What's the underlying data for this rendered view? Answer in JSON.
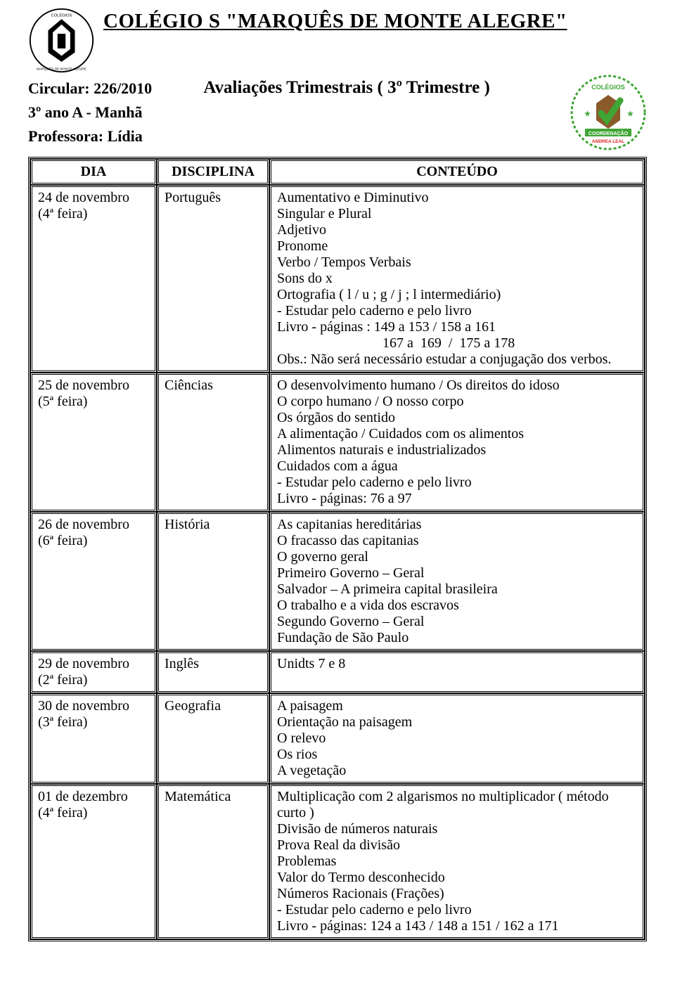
{
  "header": {
    "school_title": "COLÉGIO S \"MARQUÊS DE MONTE ALEGRE\"",
    "circular": "Circular: 226/2010",
    "grade": "3º ano A - Manhã",
    "teacher": "Professora: Lídia",
    "eval_title": "Avaliações Trimestrais  ( 3º Trimestre )"
  },
  "table": {
    "headers": {
      "dia": "DIA",
      "disciplina": "DISCIPLINA",
      "conteudo": "CONTEÚDO"
    },
    "rows": [
      {
        "dia_line1": "24 de novembro",
        "dia_line2": "(4ª feira)",
        "disciplina": "Português",
        "conteudo": [
          "Aumentativo e Diminutivo",
          "Singular e Plural",
          "Adjetivo",
          "Pronome",
          "Verbo   /  Tempos Verbais",
          "Sons do x",
          "Ortografia ( l / u  ;  g / j  ;  l intermediário)",
          "-  Estudar pelo caderno e pelo livro",
          "Livro - páginas : 149 a 153  /  158 a 161",
          "                              167 a  169  /  175 a 178",
          "Obs.: Não será necessário estudar a conjugação dos verbos."
        ]
      },
      {
        "dia_line1": "25 de novembro",
        "dia_line2": "(5ª feira)",
        "disciplina": "Ciências",
        "conteudo": [
          "O desenvolvimento humano / Os direitos do idoso",
          "O corpo humano / O nosso corpo",
          "Os órgãos do sentido",
          "A alimentação  /  Cuidados com os alimentos",
          "Alimentos naturais e industrializados",
          "Cuidados com a água",
          "-  Estudar pelo caderno e pelo livro",
          "Livro - páginas: 76 a 97"
        ]
      },
      {
        "dia_line1": "26 de novembro",
        "dia_line2": "(6ª feira)",
        "disciplina": "História",
        "conteudo": [
          "As capitanias hereditárias",
          "O fracasso das capitanias",
          "O governo geral",
          "Primeiro Governo – Geral",
          "Salvador – A primeira capital brasileira",
          "O trabalho e a vida dos escravos",
          "Segundo Governo – Geral",
          "Fundação de São Paulo"
        ]
      },
      {
        "dia_line1": "29 de novembro",
        "dia_line2": "(2ª feira)",
        "disciplina": "Inglês",
        "conteudo": [
          "Unidts 7 e 8"
        ]
      },
      {
        "dia_line1": "30 de novembro",
        "dia_line2": "(3ª feira)",
        "disciplina": "Geografia",
        "conteudo": [
          "A paisagem",
          "Orientação na paisagem",
          "O relevo",
          "Os rios",
          "A vegetação"
        ]
      },
      {
        "dia_line1": "01 de dezembro",
        "dia_line2": "(4ª feira)",
        "disciplina": "Matemática",
        "conteudo": [
          "Multiplicação com 2 algarismos no multiplicador ( método curto )",
          "Divisão de números naturais",
          "Prova Real da divisão",
          "Problemas",
          "Valor do Termo desconhecido",
          "Números Racionais (Frações)",
          " -  Estudar pelo caderno e pelo livro",
          "Livro - páginas: 124 a  143 /  148 a 151  /  162 a 171"
        ]
      }
    ]
  },
  "logo_colors": {
    "school_logo": {
      "stroke": "#000000",
      "bg": "#ffffff"
    },
    "coord_logo": {
      "green": "#3fa535",
      "brown": "#8a5a2b",
      "red": "#d22",
      "text": "#1a1a1a"
    }
  }
}
